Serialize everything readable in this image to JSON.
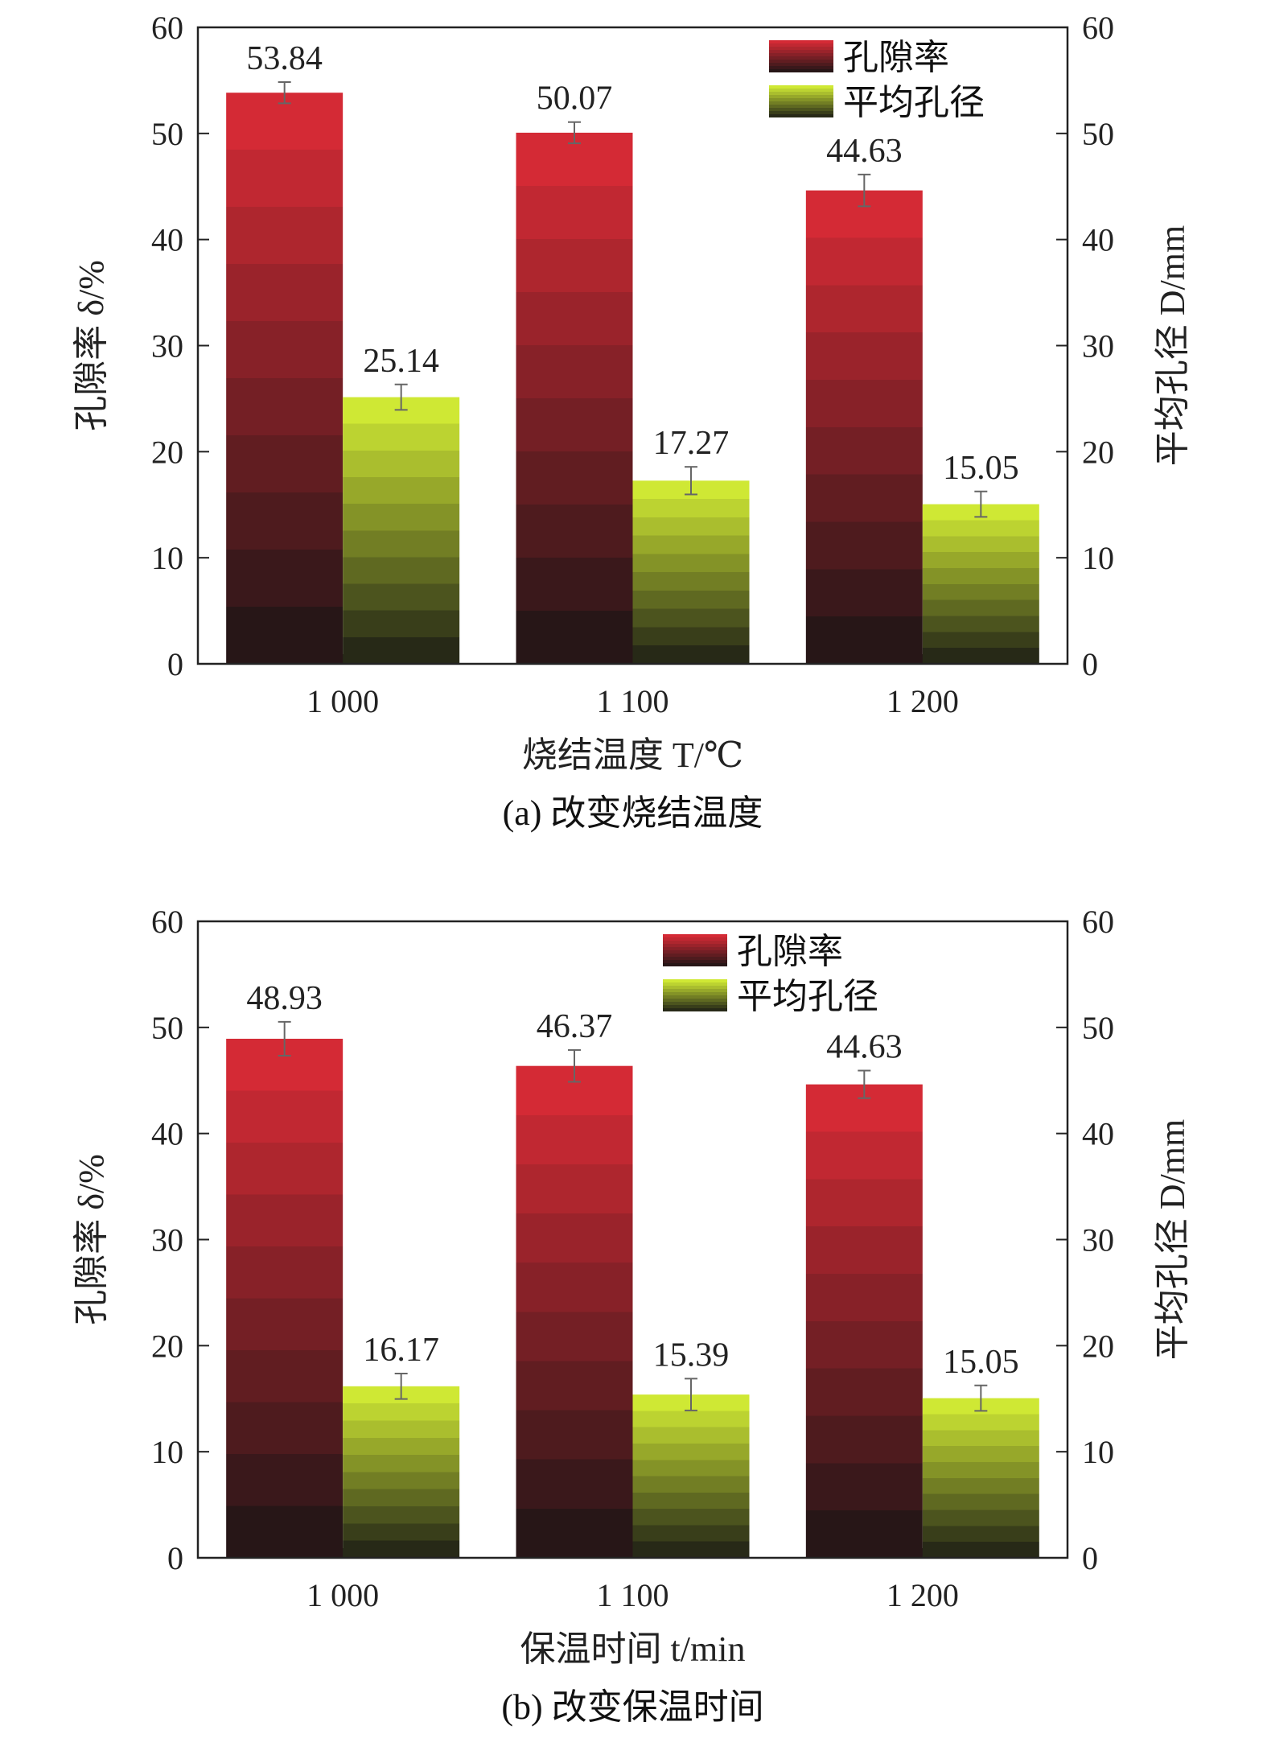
{
  "chart_data": [
    {
      "type": "bar",
      "caption": "(a) 改变烧结温度",
      "xlabel": "烧结温度 T/℃",
      "ylabel": "孔隙率 δ/%",
      "y2label": "平均孔径 D/mm",
      "categories": [
        "1 000",
        "1 100",
        "1 200"
      ],
      "ylim": [
        0,
        60
      ],
      "y2lim": [
        0,
        60
      ],
      "yticks": [
        "0",
        "10",
        "20",
        "30",
        "40",
        "50",
        "60"
      ],
      "legend_position": "top-right",
      "series": [
        {
          "name": "孔隙率",
          "axis": "left",
          "values": [
            53.84,
            50.07,
            44.63
          ],
          "labels": [
            "53.84",
            "50.07",
            "44.63"
          ],
          "errors": [
            1.0,
            1.0,
            1.5
          ],
          "color": "#d42a35"
        },
        {
          "name": "平均孔径",
          "axis": "right",
          "values": [
            25.14,
            17.27,
            15.05
          ],
          "labels": [
            "25.14",
            "17.27",
            "15.05"
          ],
          "errors": [
            1.2,
            1.3,
            1.2
          ],
          "color": "#cfe834"
        }
      ]
    },
    {
      "type": "bar",
      "caption": "(b) 改变保温时间",
      "xlabel": "保温时间 t/min",
      "ylabel": "孔隙率 δ/%",
      "y2label": "平均孔径 D/mm",
      "categories": [
        "1 000",
        "1 100",
        "1 200"
      ],
      "ylim": [
        0,
        60
      ],
      "y2lim": [
        0,
        60
      ],
      "yticks": [
        "0",
        "10",
        "20",
        "30",
        "40",
        "50",
        "60"
      ],
      "legend_position": "top-center",
      "series": [
        {
          "name": "孔隙率",
          "axis": "left",
          "values": [
            48.93,
            46.37,
            44.63
          ],
          "labels": [
            "48.93",
            "46.37",
            "44.63"
          ],
          "errors": [
            1.6,
            1.5,
            1.3
          ],
          "color": "#d42a35"
        },
        {
          "name": "平均孔径",
          "axis": "right",
          "values": [
            16.17,
            15.39,
            15.05
          ],
          "labels": [
            "16.17",
            "15.39",
            "15.05"
          ],
          "errors": [
            1.2,
            1.5,
            1.2
          ],
          "color": "#cfe834"
        }
      ]
    }
  ]
}
